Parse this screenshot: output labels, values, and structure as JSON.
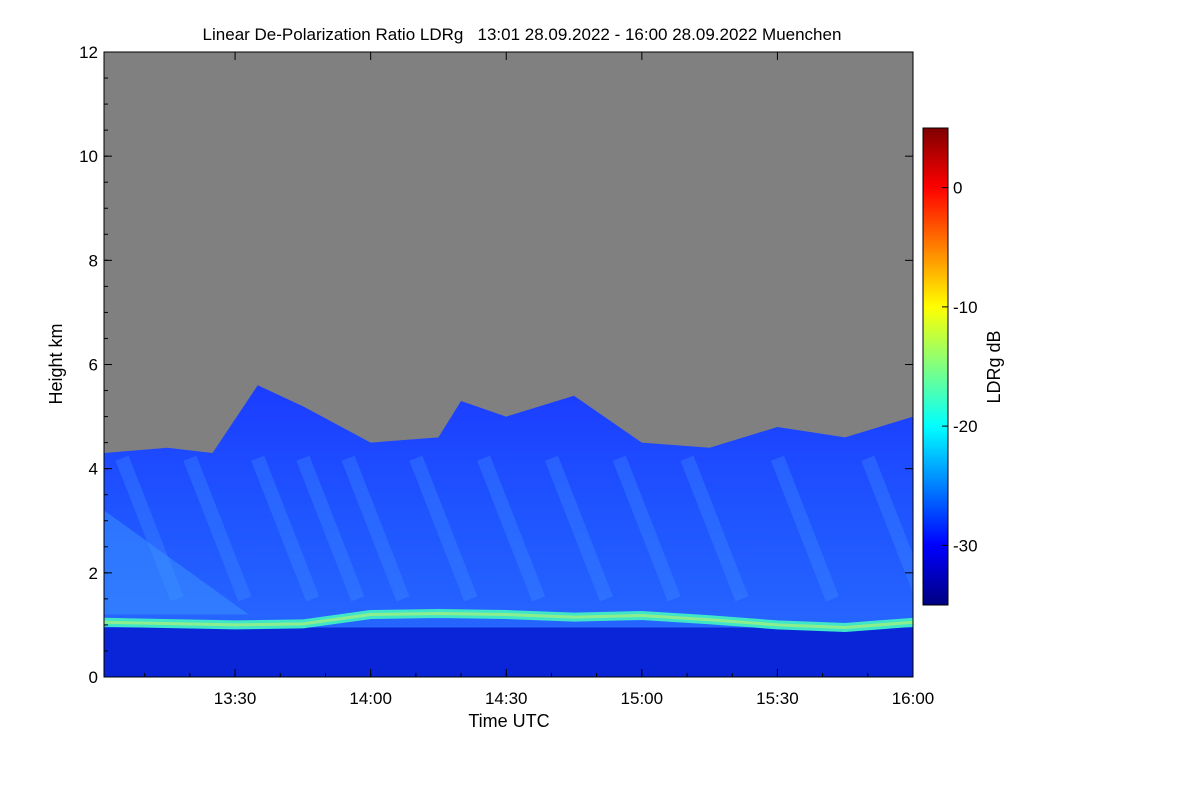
{
  "chart_data": {
    "type": "heatmap",
    "title": "Linear De-Polarization Ratio LDRg   13:01 28.09.2022 - 16:00 28.09.2022 Muenchen",
    "xlabel": "Time UTC",
    "ylabel": "Height km",
    "colorbar_label": "LDRg dB",
    "xlim": [
      "13:01",
      "16:00"
    ],
    "ylim": [
      0,
      12
    ],
    "x_ticks": [
      "13:30",
      "14:00",
      "14:30",
      "15:00",
      "15:30",
      "16:00"
    ],
    "y_ticks": [
      0,
      2,
      4,
      6,
      8,
      10,
      12
    ],
    "colorbar_range": [
      -35,
      5
    ],
    "colorbar_ticks": [
      0,
      -10,
      -20,
      -30
    ],
    "missing_color": "#808080",
    "colormap": [
      "#000080",
      "#0000ff",
      "#0080ff",
      "#00ffff",
      "#80ff80",
      "#ffff00",
      "#ff8000",
      "#ff0000",
      "#800000"
    ],
    "boundary_layer_top_km": {
      "x": [
        "13:01",
        "13:30",
        "13:45",
        "14:00",
        "14:15",
        "14:30",
        "14:45",
        "15:00",
        "15:15",
        "15:30",
        "15:45",
        "16:00"
      ],
      "y": [
        1.05,
        1.0,
        1.02,
        1.2,
        1.22,
        1.2,
        1.15,
        1.18,
        1.1,
        1.0,
        0.95,
        1.05
      ]
    },
    "cloud_top_km": {
      "x": [
        "13:01",
        "13:15",
        "13:25",
        "13:35",
        "13:45",
        "14:00",
        "14:15",
        "14:20",
        "14:30",
        "14:45",
        "15:00",
        "15:15",
        "15:30",
        "15:45",
        "16:00"
      ],
      "y": [
        4.3,
        4.4,
        4.3,
        5.6,
        5.2,
        4.5,
        4.6,
        5.3,
        5.0,
        5.4,
        4.5,
        4.4,
        4.8,
        4.6,
        5.0
      ]
    }
  }
}
